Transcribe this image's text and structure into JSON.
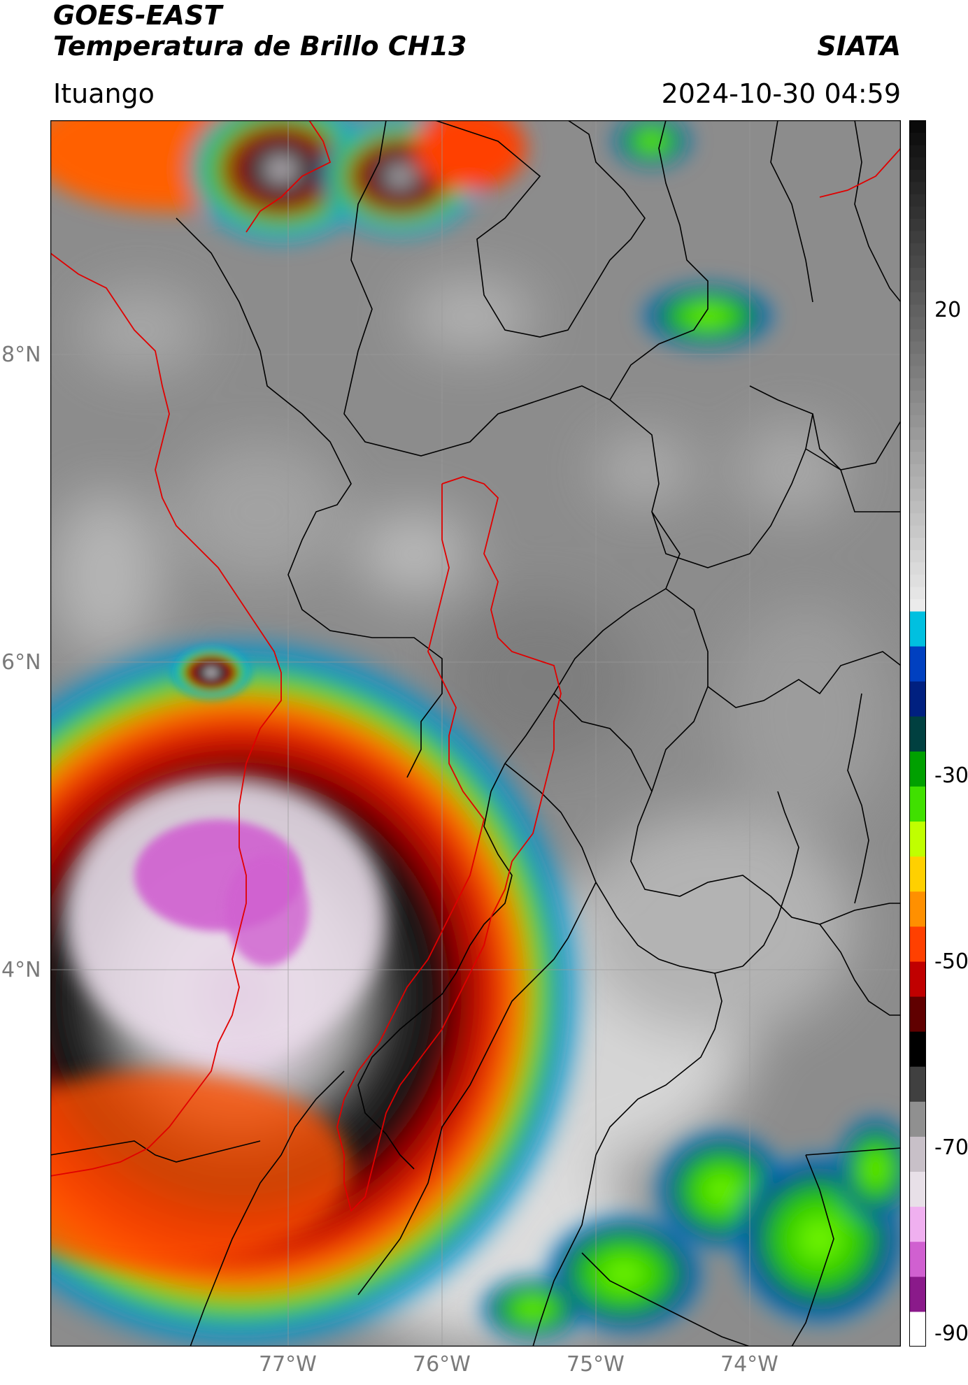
{
  "header": {
    "title_line1": "GOES-EAST",
    "title_line2": "Temperatura de Brillo CH13",
    "org": "SIATA",
    "region": "Ituango",
    "datetime": "2024-10-30 04:59"
  },
  "map": {
    "lat_labels": [
      "8°N",
      "6°N",
      "4°N"
    ],
    "lon_labels": [
      "77°W",
      "76°W",
      "75°W",
      "74°W"
    ],
    "background_color": "#8a8a8a",
    "boundary_color": "#000000",
    "basin_color": "#e00000"
  },
  "colorbar": {
    "ticks": [
      "20",
      "-30",
      "-50",
      "-70",
      "-90"
    ],
    "range": [
      -90,
      30
    ],
    "colors": [
      "#ffffff",
      "#8a1a8a",
      "#d060d0",
      "#f0b0f0",
      "#e8e0e8",
      "#c8c0c8",
      "#909090",
      "#404040",
      "#000000",
      "#600000",
      "#c00000",
      "#ff4000",
      "#ff9000",
      "#ffd000",
      "#c0ff00",
      "#40e000",
      "#00a000",
      "#004040",
      "#002080",
      "#0040c0",
      "#00c0e0",
      "#e0e0e0",
      "#808080",
      "#404040",
      "#000000"
    ]
  }
}
